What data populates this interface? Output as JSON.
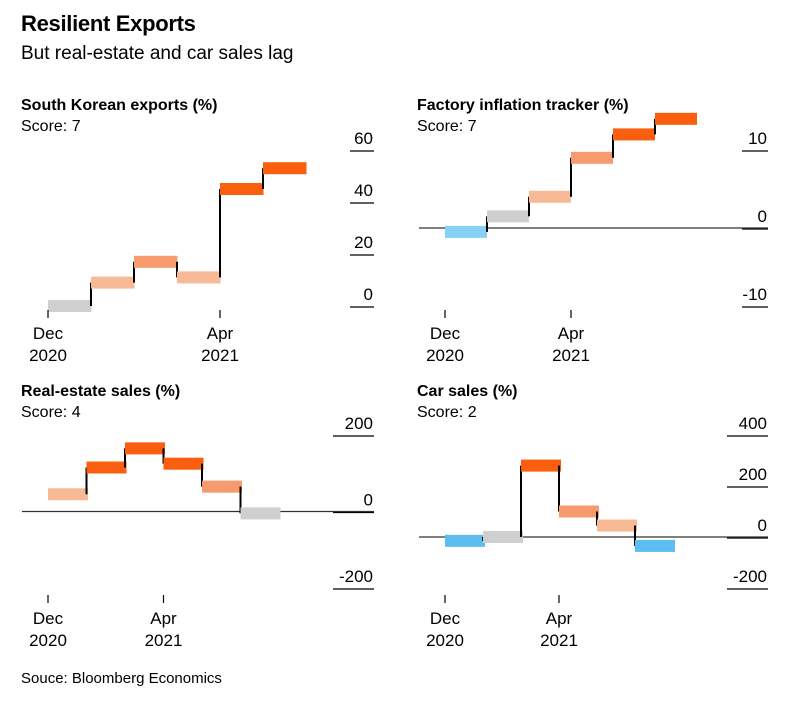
{
  "title": "Resilient Exports",
  "subtitle": "But real-estate and car sales lag",
  "source": "Souce: Bloomberg Economics",
  "colors": {
    "dark_orange": "#f95f0e",
    "mid_orange": "#f79a6e",
    "light_orange": "#f7b996",
    "gray": "#cfcfcf",
    "blue": "#5cbef0",
    "light_blue": "#86cff5",
    "baseline": "#333333",
    "connector": "#000000"
  },
  "chart_data": [
    {
      "type": "step",
      "title": "South Korean exports (%)",
      "score": "Score: 7",
      "yticks": [
        60,
        40,
        20,
        0
      ],
      "ylim": [
        -4,
        70
      ],
      "xticks": [
        {
          "index": 0,
          "month": "Dec",
          "year": "2020"
        },
        {
          "index": 4,
          "month": "Apr",
          "year": "2021"
        }
      ],
      "values": [
        0,
        9,
        17,
        11,
        45,
        53
      ],
      "colors": [
        "gray",
        "light_orange",
        "mid_orange",
        "light_orange",
        "dark_orange",
        "dark_orange"
      ],
      "zero_line": false
    },
    {
      "type": "step",
      "title": "Factory inflation tracker (%)",
      "score": "Score: 7",
      "yticks": [
        10,
        0,
        -10
      ],
      "ylim": [
        -15,
        15
      ],
      "xticks": [
        {
          "index": 0,
          "month": "Dec",
          "year": "2020"
        },
        {
          "index": 3,
          "month": "Apr",
          "year": "2021"
        }
      ],
      "values": [
        -0.5,
        1.5,
        4,
        9,
        12,
        14
      ],
      "colors": [
        "light_blue",
        "gray",
        "light_orange",
        "mid_orange",
        "dark_orange",
        "dark_orange"
      ],
      "zero_line": true
    },
    {
      "type": "step",
      "title": "Real-estate sales (%)",
      "score": "Score: 4",
      "yticks": [
        200,
        0,
        -200
      ],
      "ylim": [
        -260,
        240
      ],
      "xticks": [
        {
          "index": 0,
          "month": "Dec",
          "year": "2020"
        },
        {
          "index": 3,
          "month": "Apr",
          "year": "2021"
        }
      ],
      "values": [
        45,
        115,
        165,
        125,
        65,
        -5
      ],
      "colors": [
        "light_orange",
        "dark_orange",
        "dark_orange",
        "dark_orange",
        "mid_orange",
        "gray"
      ],
      "zero_line": true
    },
    {
      "type": "step",
      "title": "Car sales (%)",
      "score": "Score: 2",
      "yticks": [
        400,
        200,
        0,
        -200
      ],
      "ylim": [
        -300,
        500
      ],
      "xticks": [
        {
          "index": 0,
          "month": "Dec",
          "year": "2020"
        },
        {
          "index": 3,
          "month": "Apr",
          "year": "2021"
        }
      ],
      "values": [
        -15,
        0,
        280,
        100,
        45,
        -35
      ],
      "colors": [
        "blue",
        "gray",
        "dark_orange",
        "mid_orange",
        "light_orange",
        "blue"
      ],
      "zero_line": true
    }
  ]
}
